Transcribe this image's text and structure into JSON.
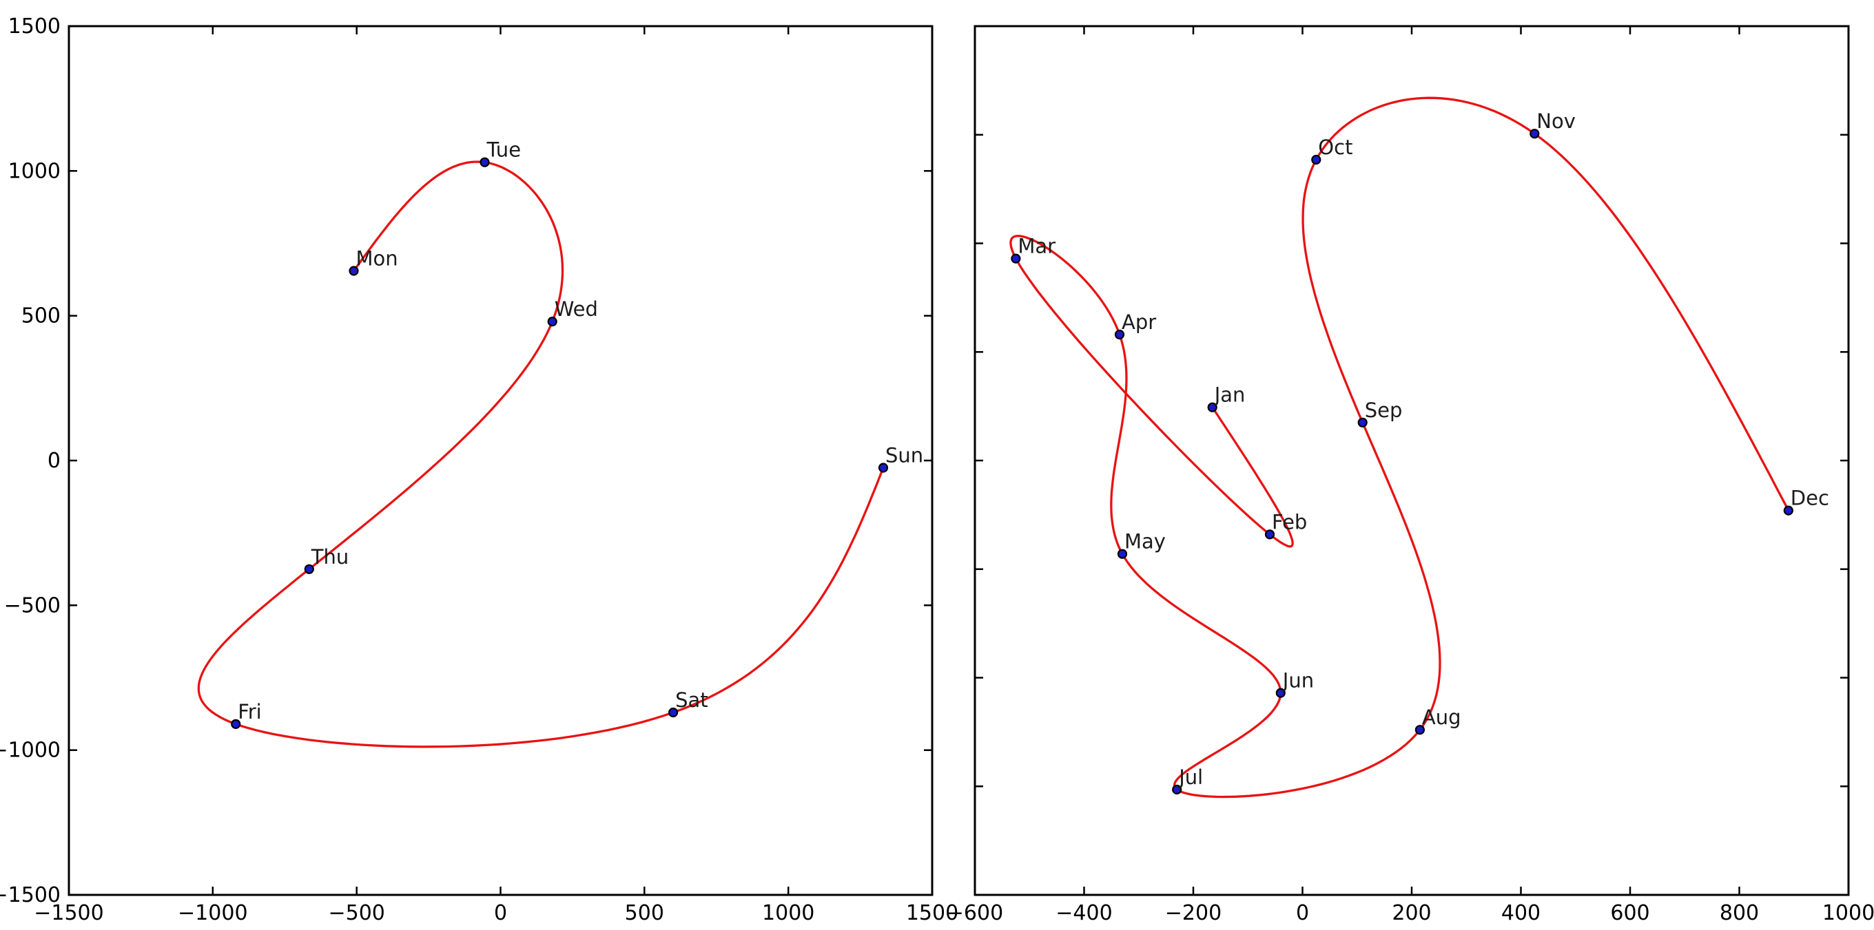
{
  "page": {
    "background": "#ffffff",
    "description": "Two parametric cubic-spline scatter plots: weekday trajectory and month trajectory"
  },
  "style": {
    "curve_color": "#e81313",
    "marker_fill": "#1a1acc",
    "marker_edge": "#000000",
    "axis_color": "#000000",
    "tick_label_color": "#000000",
    "annotation_color": "#1c1c1c"
  },
  "chart_data": [
    {
      "id": "weekdays",
      "type": "scatter",
      "line_style": "cubic-spline",
      "title": "",
      "xlabel": "",
      "ylabel": "",
      "grid": false,
      "legend": false,
      "xlim": [
        -1500,
        1500
      ],
      "ylim": [
        -1500,
        1500
      ],
      "x_ticks": {
        "values": [
          -1500,
          -1000,
          -500,
          0,
          500,
          1000,
          1500
        ],
        "labels": [
          "−1500",
          "−1000",
          "−500",
          "0",
          "500",
          "1000",
          "1500"
        ],
        "show_labels": true
      },
      "y_ticks": {
        "values": [
          -1500,
          -1000,
          -500,
          0,
          500,
          1000,
          1500
        ],
        "labels": [
          "−1500",
          "−1000",
          "−500",
          "0",
          "500",
          "1000",
          "1500"
        ],
        "show_labels": true
      },
      "points": [
        {
          "label": "Mon",
          "x": -510,
          "y": 655
        },
        {
          "label": "Tue",
          "x": -55,
          "y": 1030
        },
        {
          "label": "Wed",
          "x": 180,
          "y": 480
        },
        {
          "label": "Thu",
          "x": -665,
          "y": -375
        },
        {
          "label": "Fri",
          "x": -920,
          "y": -910
        },
        {
          "label": "Sat",
          "x": 600,
          "y": -870
        },
        {
          "label": "Sun",
          "x": 1330,
          "y": -25
        }
      ]
    },
    {
      "id": "months",
      "type": "scatter",
      "line_style": "cubic-spline",
      "title": "",
      "xlabel": "",
      "ylabel": "",
      "grid": false,
      "legend": false,
      "xlim": [
        -600,
        1000
      ],
      "ylim": [
        -2000,
        2000
      ],
      "x_ticks": {
        "values": [
          -600,
          -400,
          -200,
          0,
          200,
          400,
          600,
          800,
          1000
        ],
        "labels": [
          "−600",
          "−400",
          "−200",
          "0",
          "200",
          "400",
          "600",
          "800",
          "1000"
        ],
        "show_labels": true
      },
      "y_ticks": {
        "values": [
          -2000,
          -1500,
          -1000,
          -500,
          0,
          500,
          1000,
          1500,
          2000
        ],
        "labels": [],
        "show_labels": false
      },
      "points": [
        {
          "label": "Jan",
          "x": -165,
          "y": 245
        },
        {
          "label": "Feb",
          "x": -60,
          "y": -340
        },
        {
          "label": "Mar",
          "x": -525,
          "y": 930
        },
        {
          "label": "Apr",
          "x": -335,
          "y": 580
        },
        {
          "label": "May",
          "x": -330,
          "y": -430
        },
        {
          "label": "Jun",
          "x": -40,
          "y": -1070
        },
        {
          "label": "Jul",
          "x": -230,
          "y": -1515
        },
        {
          "label": "Aug",
          "x": 215,
          "y": -1240
        },
        {
          "label": "Sep",
          "x": 110,
          "y": 175
        },
        {
          "label": "Oct",
          "x": 25,
          "y": 1385
        },
        {
          "label": "Nov",
          "x": 425,
          "y": 1505
        },
        {
          "label": "Dec",
          "x": 890,
          "y": -230
        }
      ]
    }
  ]
}
